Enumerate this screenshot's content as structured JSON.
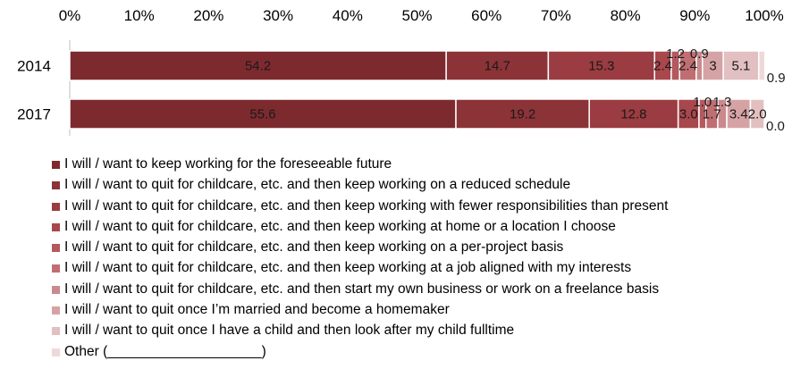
{
  "chart_data": {
    "type": "bar",
    "orientation": "horizontal",
    "stacked": true,
    "categories": [
      "2014",
      "2017"
    ],
    "xlim": [
      0,
      100
    ],
    "x_ticks": [
      "0%",
      "10%",
      "20%",
      "30%",
      "40%",
      "50%",
      "60%",
      "70%",
      "80%",
      "90%",
      "100%"
    ],
    "x_axis_position": "top",
    "grid": false,
    "legend_position": "bottom",
    "series": [
      {
        "name": "I will / want to keep working for the foreseeable future",
        "values": [
          54.2,
          55.6
        ],
        "labels": [
          "54.2",
          "55.6"
        ],
        "color": "#7d2a2f"
      },
      {
        "name": "I will / want to quit for childcare, etc. and then keep working on a reduced schedule",
        "values": [
          14.7,
          19.2
        ],
        "labels": [
          "14.7",
          "19.2"
        ],
        "color": "#8c3338"
      },
      {
        "name": "I will / want to quit for childcare, etc. and then keep working with fewer responsibilities than present",
        "values": [
          15.3,
          12.8
        ],
        "labels": [
          "15.3",
          "12.8"
        ],
        "color": "#9a3c41"
      },
      {
        "name": "I will / want to quit for childcare, etc. and then keep working at home or a location I choose",
        "values": [
          2.4,
          3.0
        ],
        "labels": [
          "2.4",
          "3.0"
        ],
        "color": "#a8474c"
      },
      {
        "name": "I will / want to quit for childcare, etc. and then keep working on a per-project basis",
        "values": [
          1.2,
          1.0
        ],
        "labels": [
          "1.2",
          "1.0"
        ],
        "color": "#b4595e"
      },
      {
        "name": "I will / want to quit for childcare, etc. and then keep working at a job aligned with my interests",
        "values": [
          2.4,
          1.7
        ],
        "labels": [
          "2.4",
          "1.7"
        ],
        "color": "#bf6e72"
      },
      {
        "name": "I will / want to quit for childcare, etc. and then start my own business or work on a freelance basis",
        "values": [
          0.9,
          1.3
        ],
        "labels": [
          "0.9",
          "1.3"
        ],
        "color": "#ca8a8d"
      },
      {
        "name": "I will / want to quit once I’m married and become a homemaker",
        "values": [
          3.0,
          3.4
        ],
        "labels": [
          "3",
          "3.4"
        ],
        "color": "#d6a3a5"
      },
      {
        "name": "I will / want to quit once I have a child and then look after my child fulltime",
        "values": [
          5.1,
          2.0
        ],
        "labels": [
          "5.1",
          "2.0"
        ],
        "color": "#e2bfc0"
      },
      {
        "name": "Other (____________________)",
        "values": [
          0.9,
          0.0
        ],
        "labels": [
          "0.9",
          "0.0"
        ],
        "color": "#eed8d9"
      }
    ]
  }
}
